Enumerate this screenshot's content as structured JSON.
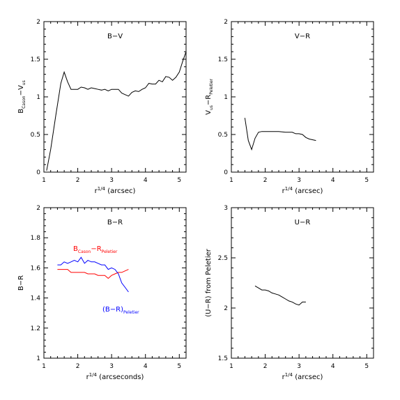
{
  "chart_data": [
    {
      "type": "line",
      "title": "B−V",
      "xlabel_base": "r",
      "xlabel_sup": "1/4",
      "xlabel_tail": " (arcsec)",
      "ylabel_main": "B",
      "ylabel_sub1": "Cason",
      "ylabel_mid": "−V",
      "ylabel_sub2": "us",
      "xlim": [
        1,
        5.2
      ],
      "ylim": [
        0,
        2
      ],
      "xticks": [
        1,
        2,
        3,
        4,
        5
      ],
      "yticks": [
        0,
        0.5,
        1,
        1.5,
        2
      ],
      "xtick_labels": [
        "1",
        "2",
        "3",
        "4",
        "5"
      ],
      "ytick_labels": [
        "0",
        "0.5",
        "1",
        "1.5",
        "2"
      ],
      "series": [
        {
          "color": "#000000",
          "x": [
            1.08,
            1.2,
            1.35,
            1.5,
            1.6,
            1.7,
            1.8,
            1.9,
            2.0,
            2.1,
            2.2,
            2.3,
            2.4,
            2.5,
            2.6,
            2.7,
            2.8,
            2.9,
            3.0,
            3.1,
            3.2,
            3.3,
            3.4,
            3.5,
            3.6,
            3.7,
            3.8,
            3.9,
            4.0,
            4.1,
            4.2,
            4.3,
            4.4,
            4.5,
            4.6,
            4.7,
            4.8,
            4.9,
            5.0,
            5.1,
            5.2
          ],
          "y": [
            0.02,
            0.3,
            0.75,
            1.18,
            1.33,
            1.2,
            1.1,
            1.1,
            1.1,
            1.13,
            1.12,
            1.1,
            1.12,
            1.11,
            1.1,
            1.09,
            1.1,
            1.08,
            1.1,
            1.1,
            1.1,
            1.05,
            1.03,
            1.01,
            1.06,
            1.08,
            1.07,
            1.1,
            1.12,
            1.18,
            1.17,
            1.17,
            1.22,
            1.2,
            1.27,
            1.26,
            1.22,
            1.26,
            1.33,
            1.47,
            1.6
          ]
        }
      ]
    },
    {
      "type": "line",
      "title": "V−R",
      "xlabel_base": "r",
      "xlabel_sup": "1/4",
      "xlabel_tail": " (arcsec)",
      "ylabel_main": "V",
      "ylabel_sub1": "us",
      "ylabel_mid": "−R",
      "ylabel_sub2": "Peletier",
      "xlim": [
        1,
        5.2
      ],
      "ylim": [
        0,
        2
      ],
      "xticks": [
        1,
        2,
        3,
        4,
        5
      ],
      "yticks": [
        0,
        0.5,
        1,
        1.5,
        2
      ],
      "xtick_labels": [
        "1",
        "2",
        "3",
        "4",
        "5"
      ],
      "ytick_labels": [
        "0",
        "0.5",
        "1",
        "1.5",
        "2"
      ],
      "series": [
        {
          "color": "#000000",
          "x": [
            1.4,
            1.5,
            1.6,
            1.7,
            1.8,
            1.9,
            2.0,
            2.2,
            2.4,
            2.6,
            2.8,
            2.9,
            3.0,
            3.1,
            3.2,
            3.3,
            3.5
          ],
          "y": [
            0.72,
            0.42,
            0.3,
            0.45,
            0.53,
            0.54,
            0.54,
            0.54,
            0.54,
            0.53,
            0.53,
            0.51,
            0.51,
            0.5,
            0.46,
            0.44,
            0.42
          ]
        }
      ]
    },
    {
      "type": "line",
      "title": "B−R",
      "xlabel_base": "r",
      "xlabel_sup": "1/4",
      "xlabel_tail": " (arcseconds)",
      "ylabel_main": "B−R",
      "ylabel_sub1": "",
      "ylabel_mid": "",
      "ylabel_sub2": "",
      "xlim": [
        1,
        5.2
      ],
      "ylim": [
        1,
        2
      ],
      "xticks": [
        1,
        2,
        3,
        4,
        5
      ],
      "yticks": [
        1,
        1.2,
        1.4,
        1.6,
        1.8,
        2
      ],
      "xtick_labels": [
        "1",
        "2",
        "3",
        "4",
        "5"
      ],
      "ytick_labels": [
        "1",
        "1.2",
        "1.4",
        "1.6",
        "1.8",
        "2"
      ],
      "annotations": [
        {
          "main": "B",
          "sub1": "Cason",
          "mid": "−R",
          "sub2": "Peletier",
          "color": "#ff0000"
        },
        {
          "main": "(B−R)",
          "sub1": "Peletier",
          "mid": "",
          "sub2": "",
          "color": "#0000ff"
        }
      ],
      "series": [
        {
          "color": "#ff0000",
          "x": [
            1.4,
            1.5,
            1.6,
            1.7,
            1.8,
            1.9,
            2.0,
            2.1,
            2.2,
            2.3,
            2.4,
            2.5,
            2.6,
            2.7,
            2.8,
            2.9,
            3.0,
            3.1,
            3.2,
            3.3,
            3.4,
            3.5
          ],
          "y": [
            1.59,
            1.59,
            1.59,
            1.59,
            1.57,
            1.57,
            1.57,
            1.57,
            1.57,
            1.56,
            1.56,
            1.56,
            1.55,
            1.55,
            1.55,
            1.53,
            1.55,
            1.56,
            1.57,
            1.57,
            1.58,
            1.59
          ]
        },
        {
          "color": "#0000ff",
          "x": [
            1.4,
            1.5,
            1.6,
            1.7,
            1.8,
            1.9,
            2.0,
            2.1,
            2.2,
            2.3,
            2.4,
            2.5,
            2.6,
            2.7,
            2.8,
            2.9,
            3.0,
            3.1,
            3.2,
            3.3,
            3.4,
            3.5
          ],
          "y": [
            1.62,
            1.62,
            1.64,
            1.63,
            1.64,
            1.65,
            1.64,
            1.67,
            1.63,
            1.65,
            1.64,
            1.64,
            1.63,
            1.62,
            1.62,
            1.59,
            1.6,
            1.59,
            1.56,
            1.5,
            1.47,
            1.44
          ]
        }
      ]
    },
    {
      "type": "line",
      "title": "U−R",
      "xlabel_base": "r",
      "xlabel_sup": "1/4",
      "xlabel_tail": " (arcsec)",
      "ylabel_main": "(U−R) from Peletier",
      "ylabel_sub1": "",
      "ylabel_mid": "",
      "ylabel_sub2": "",
      "xlim": [
        1,
        5.2
      ],
      "ylim": [
        1.5,
        3
      ],
      "xticks": [
        1,
        2,
        3,
        4,
        5
      ],
      "yticks": [
        1.5,
        2,
        2.5,
        3
      ],
      "xtick_labels": [
        "1",
        "2",
        "3",
        "4",
        "5"
      ],
      "ytick_labels": [
        "1.5",
        "2",
        "2.5",
        "3"
      ],
      "series": [
        {
          "color": "#000000",
          "x": [
            1.7,
            1.8,
            1.9,
            2.0,
            2.1,
            2.2,
            2.3,
            2.4,
            2.5,
            2.6,
            2.7,
            2.8,
            2.9,
            3.0,
            3.1,
            3.2
          ],
          "y": [
            2.22,
            2.2,
            2.18,
            2.18,
            2.17,
            2.15,
            2.14,
            2.13,
            2.11,
            2.09,
            2.07,
            2.06,
            2.04,
            2.03,
            2.06,
            2.06
          ]
        }
      ]
    }
  ]
}
